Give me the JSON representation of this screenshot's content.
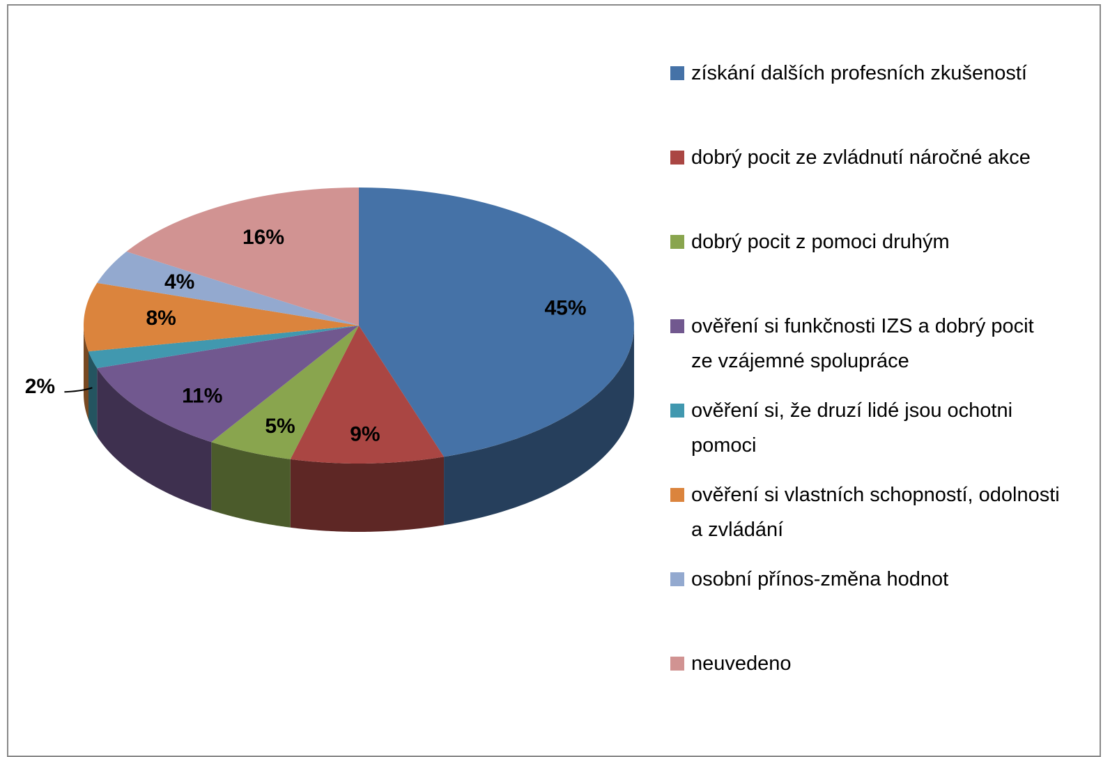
{
  "chart_data": {
    "type": "pie3d",
    "categories": [
      "získání dalších profesních zkušeností",
      "dobrý pocit ze zvládnutí náročné akce",
      "dobrý pocit z pomoci druhým",
      "ověření si funkčnosti IZS a dobrý pocit ze vzájemné spolupráce",
      "ověření si, že druzí lidé jsou ochotni pomoci",
      "ověření si vlastních schopností, odolnosti a zvládání",
      "osobní přínos-změna hodnot",
      "neuvedeno"
    ],
    "values": [
      45,
      9,
      5,
      11,
      2,
      8,
      4,
      16
    ],
    "value_labels": [
      "45%",
      "9%",
      "5%",
      "11%",
      "2%",
      "8%",
      "4%",
      "16%"
    ],
    "colors": [
      "#4572a7",
      "#aa4643",
      "#89a54e",
      "#71588f",
      "#4198af",
      "#db843d",
      "#93a9cf",
      "#d19392"
    ],
    "legend": "right"
  }
}
